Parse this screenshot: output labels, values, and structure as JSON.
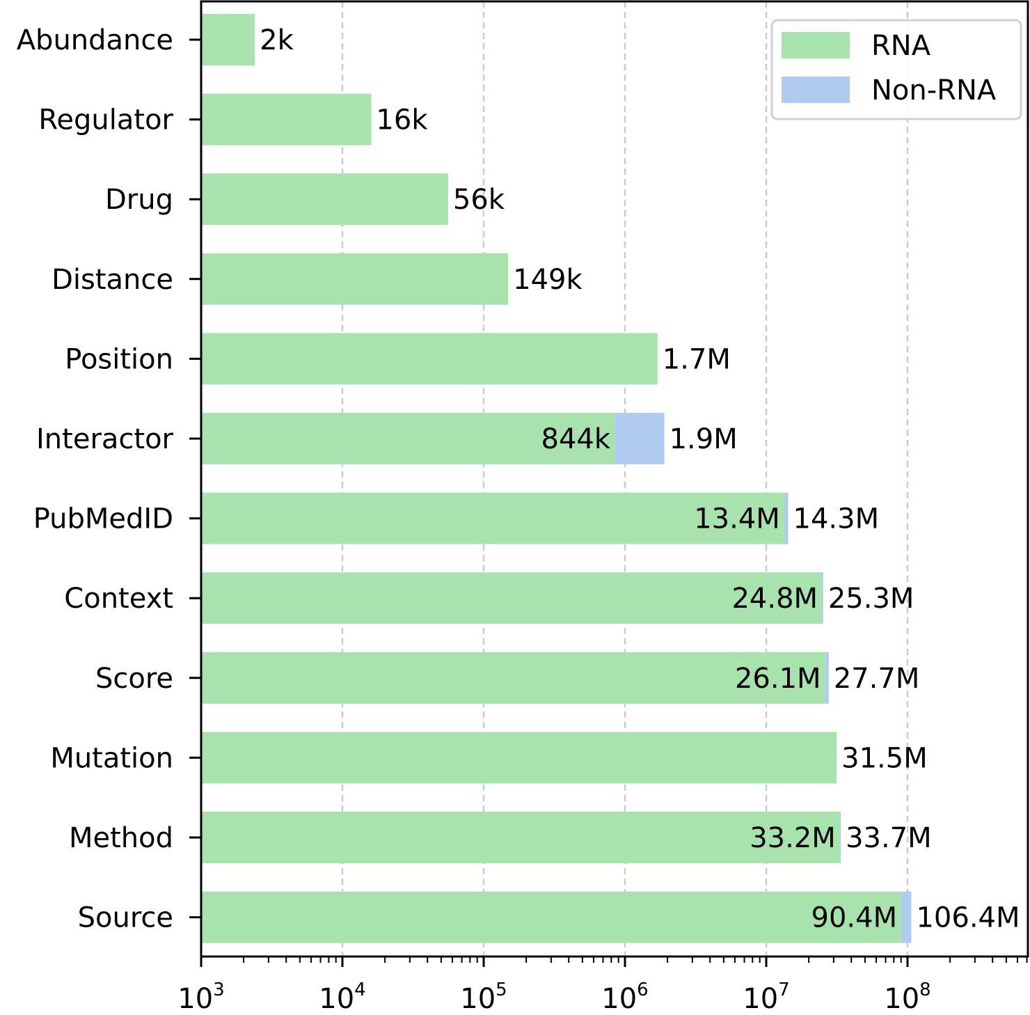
{
  "chart_data": {
    "type": "bar",
    "orientation": "horizontal",
    "stacked": true,
    "x_scale": "log",
    "xlim": [
      1000,
      700000000
    ],
    "grid": "vertical dashed lines at major ticks",
    "legend_placement": "top-right",
    "categories": [
      "Abundance",
      "Regulator",
      "Drug",
      "Distance",
      "Position",
      "Interactor",
      "PubMedID",
      "Context",
      "Score",
      "Mutation",
      "Method",
      "Source"
    ],
    "series": [
      {
        "name": "RNA",
        "color": "#a8e3ae",
        "values": [
          2400,
          16000,
          56000,
          149000,
          1700000,
          844000,
          13400000,
          24800000,
          26100000,
          31500000,
          33200000,
          90400000
        ]
      },
      {
        "name": "Non-RNA",
        "color": "#b0cbf0",
        "values": [
          0,
          0,
          0,
          0,
          0,
          1056000,
          900000,
          500000,
          1600000,
          0,
          500000,
          16000000
        ]
      }
    ],
    "total_labels": [
      "2k",
      "16k",
      "56k",
      "149k",
      "1.7M",
      "1.9M",
      "14.3M",
      "25.3M",
      "27.7M",
      "31.5M",
      "33.7M",
      "106.4M"
    ],
    "inner_labels": [
      "",
      "",
      "",
      "",
      "",
      "844k",
      "13.4M",
      "24.8M",
      "26.1M",
      "",
      "33.2M",
      "90.4M"
    ],
    "x_ticks": [
      {
        "value": 1000,
        "base": "10",
        "exp": "3"
      },
      {
        "value": 10000,
        "base": "10",
        "exp": "4"
      },
      {
        "value": 100000,
        "base": "10",
        "exp": "5"
      },
      {
        "value": 1000000,
        "base": "10",
        "exp": "6"
      },
      {
        "value": 10000000,
        "base": "10",
        "exp": "7"
      },
      {
        "value": 100000000,
        "base": "10",
        "exp": "8"
      }
    ]
  }
}
